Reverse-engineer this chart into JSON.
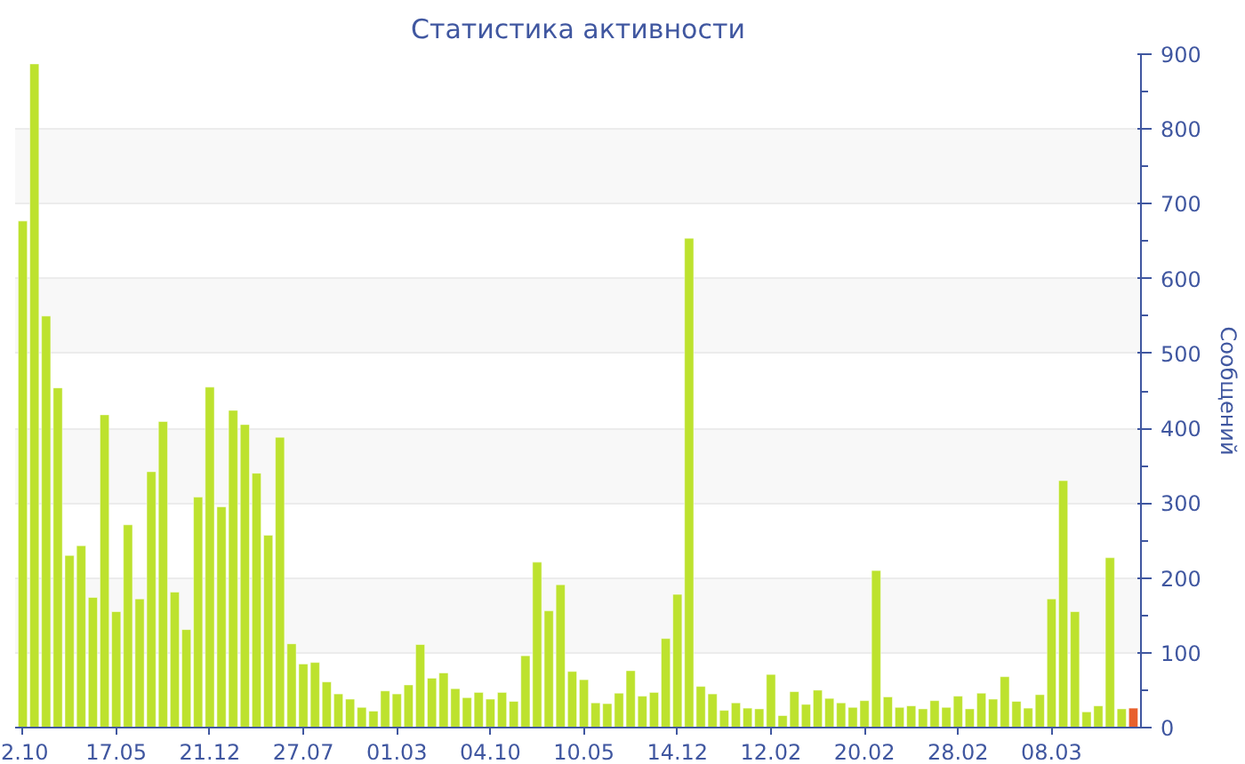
{
  "chart_data": {
    "type": "bar",
    "title": "Статистика активности",
    "ylabel": "Сообщений",
    "categories": [
      "2.10",
      null,
      null,
      null,
      null,
      null,
      null,
      null,
      "17.05",
      null,
      null,
      null,
      null,
      null,
      null,
      null,
      "21.12",
      null,
      null,
      null,
      null,
      null,
      null,
      null,
      "27.07",
      null,
      null,
      null,
      null,
      null,
      null,
      null,
      "01.03",
      null,
      null,
      null,
      null,
      null,
      null,
      null,
      "04.10",
      null,
      null,
      null,
      null,
      null,
      null,
      null,
      "10.05",
      null,
      null,
      null,
      null,
      null,
      null,
      null,
      "14.12",
      null,
      null,
      null,
      null,
      null,
      null,
      null,
      "12.02",
      null,
      null,
      null,
      null,
      null,
      null,
      null,
      "20.02",
      null,
      null,
      null,
      null,
      null,
      null,
      null,
      "28.02",
      null,
      null,
      null,
      null,
      null,
      null,
      null,
      "08.03",
      null,
      null,
      null,
      null,
      null,
      null,
      null
    ],
    "values": [
      677,
      887,
      550,
      454,
      230,
      243,
      174,
      418,
      155,
      271,
      172,
      342,
      409,
      181,
      131,
      308,
      455,
      295,
      424,
      405,
      340,
      257,
      388,
      112,
      85,
      87,
      61,
      45,
      38,
      27,
      22,
      49,
      45,
      57,
      111,
      66,
      73,
      52,
      40,
      47,
      38,
      47,
      35,
      96,
      221,
      156,
      191,
      75,
      64,
      33,
      32,
      46,
      76,
      42,
      47,
      119,
      178,
      654,
      55,
      45,
      23,
      33,
      26,
      25,
      71,
      16,
      48,
      31,
      50,
      39,
      33,
      27,
      36,
      210,
      41,
      27,
      29,
      25,
      36,
      27,
      42,
      25,
      46,
      38,
      68,
      35,
      26,
      44,
      172,
      330,
      155,
      21,
      29,
      227,
      25,
      26
    ],
    "colors": [
      "#bde22e",
      "#bde22e",
      "#bde22e",
      "#bde22e",
      "#bde22e",
      "#bde22e",
      "#bde22e",
      "#bde22e",
      "#bde22e",
      "#bde22e",
      "#bde22e",
      "#bde22e",
      "#bde22e",
      "#bde22e",
      "#bde22e",
      "#bde22e",
      "#bde22e",
      "#bde22e",
      "#bde22e",
      "#bde22e",
      "#bde22e",
      "#bde22e",
      "#bde22e",
      "#bde22e",
      "#bde22e",
      "#bde22e",
      "#bde22e",
      "#bde22e",
      "#bde22e",
      "#bde22e",
      "#bde22e",
      "#bde22e",
      "#bde22e",
      "#bde22e",
      "#bde22e",
      "#bde22e",
      "#bde22e",
      "#bde22e",
      "#bde22e",
      "#bde22e",
      "#bde22e",
      "#bde22e",
      "#bde22e",
      "#bde22e",
      "#bde22e",
      "#bde22e",
      "#bde22e",
      "#bde22e",
      "#bde22e",
      "#bde22e",
      "#bde22e",
      "#bde22e",
      "#bde22e",
      "#bde22e",
      "#bde22e",
      "#bde22e",
      "#bde22e",
      "#bde22e",
      "#bde22e",
      "#bde22e",
      "#bde22e",
      "#bde22e",
      "#bde22e",
      "#bde22e",
      "#bde22e",
      "#bde22e",
      "#bde22e",
      "#bde22e",
      "#bde22e",
      "#bde22e",
      "#bde22e",
      "#bde22e",
      "#bde22e",
      "#bde22e",
      "#bde22e",
      "#bde22e",
      "#bde22e",
      "#bde22e",
      "#bde22e",
      "#bde22e",
      "#bde22e",
      "#bde22e",
      "#bde22e",
      "#bde22e",
      "#bde22e",
      "#bde22e",
      "#bde22e",
      "#bde22e",
      "#bde22e",
      "#bde22e",
      "#bde22e",
      "#bde22e",
      "#bde22e",
      "#bde22e",
      "#bde22e",
      "#e8602c"
    ],
    "ylim": [
      0,
      900
    ],
    "yticks": [
      0,
      100,
      200,
      300,
      400,
      500,
      600,
      700,
      800,
      900
    ],
    "grid": "y"
  }
}
